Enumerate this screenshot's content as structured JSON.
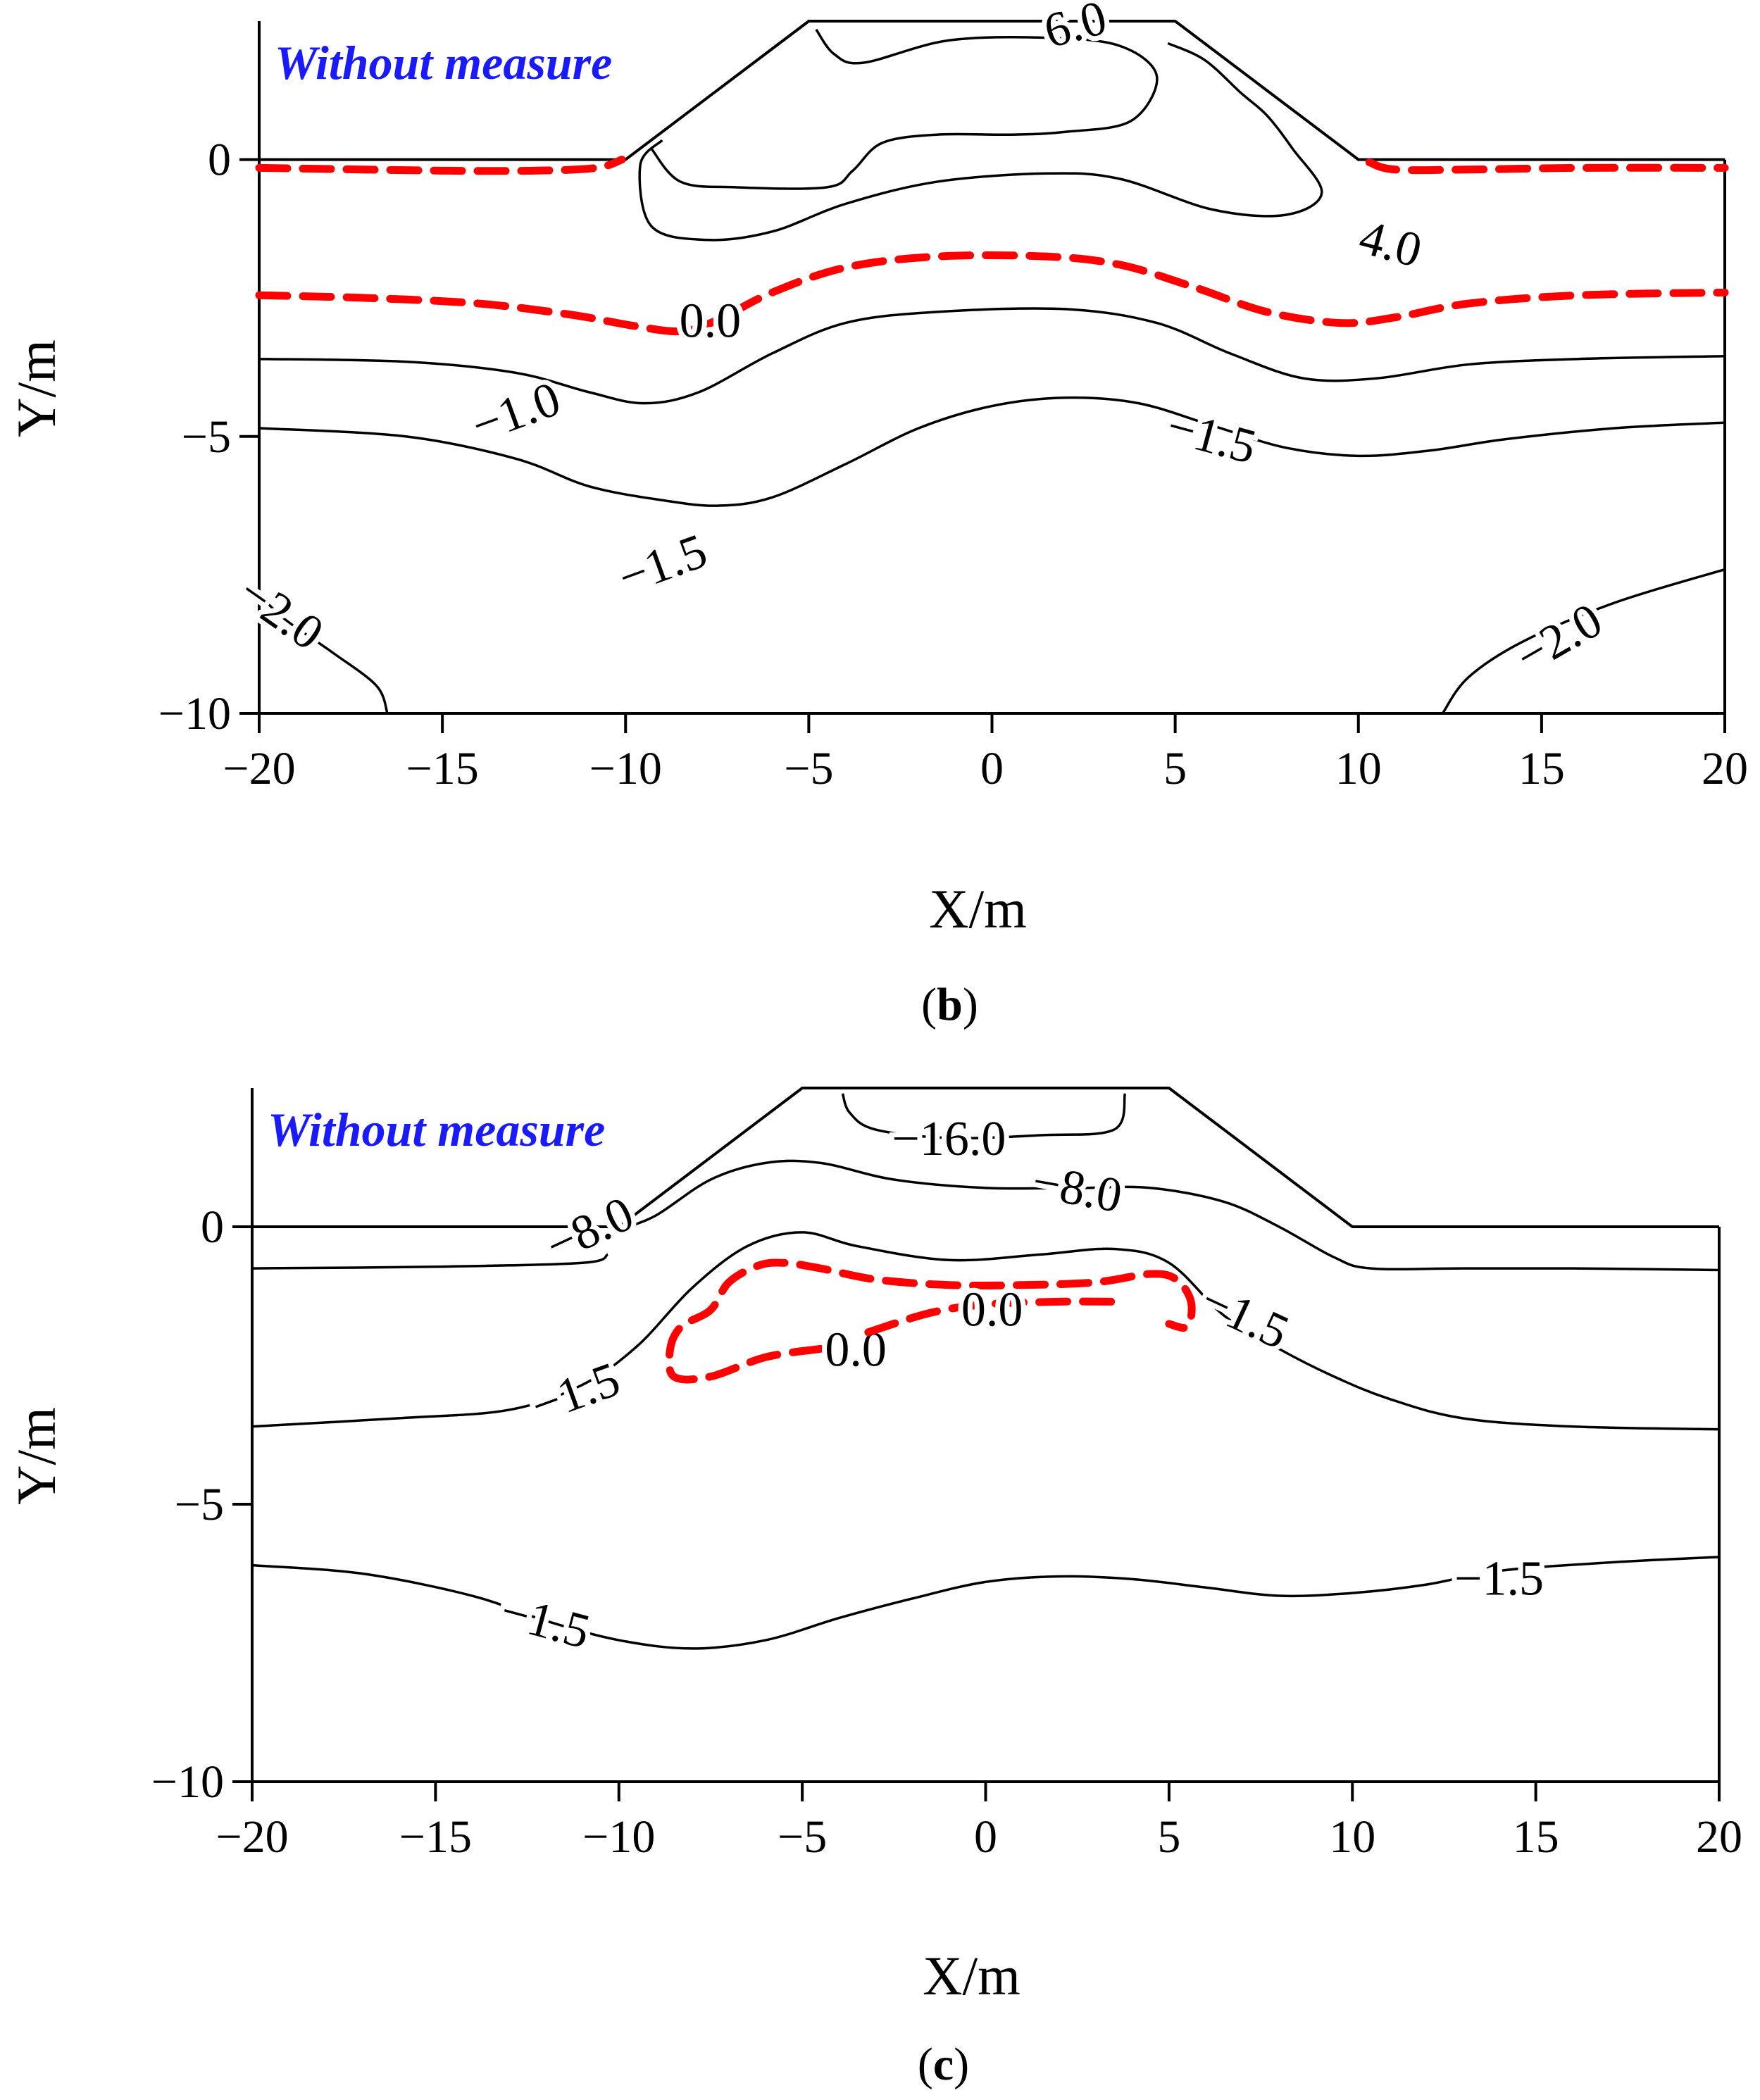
{
  "chart_data": [
    {
      "type": "contour",
      "panel": "(b)",
      "panel_label_prefix": "(",
      "panel_label_letter": "b",
      "panel_label_suffix": ")",
      "title": "Without measure",
      "title_color": "#1a1aff",
      "xlabel": "X/m",
      "ylabel": "Y/m",
      "xlim": [
        -20,
        20
      ],
      "ylim": [
        -10,
        2.5
      ],
      "xticks": [
        -20,
        -15,
        -10,
        -5,
        0,
        5,
        10,
        15,
        20
      ],
      "xtick_labels": [
        "−20",
        "−15",
        "−10",
        "−5",
        "0",
        "5",
        "10",
        "15",
        "20"
      ],
      "yticks": [
        0,
        -5,
        -10
      ],
      "ytick_labels": [
        "0",
        "−5",
        "−10"
      ],
      "embankment": [
        [
          -20,
          0
        ],
        [
          -10,
          0
        ],
        [
          -5,
          2.5
        ],
        [
          5,
          2.5
        ],
        [
          10,
          0
        ],
        [
          20,
          0
        ]
      ],
      "contour_color": "#000000",
      "zero_contour_color": "#ff0000",
      "contours": [
        {
          "level": 6.0,
          "label": "6.0",
          "points": [
            [
              -4.8,
              2.35
            ],
            [
              -4.3,
              1.9
            ],
            [
              -3.5,
              1.75
            ],
            [
              -1.2,
              2.15
            ],
            [
              1.5,
              2.2
            ],
            [
              3.5,
              2.05
            ],
            [
              4.5,
              1.5
            ],
            [
              3.8,
              0.7
            ],
            [
              2.0,
              0.5
            ],
            [
              0.5,
              0.45
            ],
            [
              -1.5,
              0.45
            ],
            [
              -3.0,
              0.3
            ],
            [
              -3.8,
              -0.2
            ],
            [
              -4.5,
              -0.5
            ],
            [
              -7.0,
              -0.5
            ],
            [
              -8.5,
              -0.4
            ],
            [
              -9.3,
              0.2
            ]
          ]
        },
        {
          "level": 4.0,
          "label": "4.0",
          "points": [
            [
              4.8,
              2.1
            ],
            [
              5.8,
              1.8
            ],
            [
              6.8,
              1.2
            ],
            [
              7.5,
              0.8
            ],
            [
              8.2,
              0.2
            ],
            [
              9.0,
              -0.6
            ],
            [
              8.0,
              -1.0
            ],
            [
              6.0,
              -0.9
            ],
            [
              3.5,
              -0.35
            ],
            [
              1.5,
              -0.25
            ],
            [
              -1.5,
              -0.4
            ],
            [
              -4.0,
              -0.8
            ],
            [
              -6.0,
              -1.3
            ],
            [
              -7.8,
              -1.45
            ],
            [
              -9.3,
              -1.2
            ],
            [
              -9.6,
              -0.1
            ],
            [
              -9.0,
              0.35
            ]
          ]
        },
        {
          "level": 0.0,
          "label": "0.0",
          "zero": true,
          "points": [
            [
              -20,
              -0.15
            ],
            [
              -15,
              -0.2
            ],
            [
              -12.5,
              -0.2
            ],
            [
              -10.8,
              -0.15
            ],
            [
              -10.1,
              0.0
            ]
          ]
        },
        {
          "level": 0.0,
          "label": "0.0",
          "zero": true,
          "points": [
            [
              10.3,
              -0.05
            ],
            [
              11,
              -0.18
            ],
            [
              13,
              -0.18
            ],
            [
              16,
              -0.15
            ],
            [
              20,
              -0.15
            ]
          ]
        },
        {
          "level": 0.0,
          "label": "0.0",
          "zero": true,
          "points": [
            [
              -20,
              -2.45
            ],
            [
              -17,
              -2.5
            ],
            [
              -14,
              -2.6
            ],
            [
              -11.5,
              -2.8
            ],
            [
              -9.8,
              -3.0
            ],
            [
              -8.5,
              -3.1
            ],
            [
              -7.5,
              -2.9
            ],
            [
              -6.0,
              -2.4
            ],
            [
              -4.0,
              -1.95
            ],
            [
              -1.5,
              -1.75
            ],
            [
              1.5,
              -1.75
            ],
            [
              3.5,
              -1.9
            ],
            [
              5.5,
              -2.3
            ],
            [
              7.5,
              -2.75
            ],
            [
              9.5,
              -2.95
            ],
            [
              11,
              -2.85
            ],
            [
              13,
              -2.6
            ],
            [
              16,
              -2.45
            ],
            [
              20,
              -2.4
            ]
          ]
        },
        {
          "level": -1.0,
          "label": "−1.0",
          "points": [
            [
              -20,
              -3.6
            ],
            [
              -16,
              -3.65
            ],
            [
              -13,
              -3.85
            ],
            [
              -11,
              -4.2
            ],
            [
              -9.5,
              -4.4
            ],
            [
              -8.0,
              -4.2
            ],
            [
              -6.0,
              -3.5
            ],
            [
              -4.0,
              -2.95
            ],
            [
              -1.5,
              -2.75
            ],
            [
              2.0,
              -2.7
            ],
            [
              4.5,
              -2.95
            ],
            [
              6.5,
              -3.5
            ],
            [
              8.5,
              -3.95
            ],
            [
              10.5,
              -3.95
            ],
            [
              13,
              -3.7
            ],
            [
              16,
              -3.6
            ],
            [
              20,
              -3.55
            ]
          ]
        },
        {
          "level": -1.5,
          "label": "−1.5",
          "points": [
            [
              -20,
              -4.85
            ],
            [
              -16,
              -5.0
            ],
            [
              -13,
              -5.4
            ],
            [
              -11,
              -5.9
            ],
            [
              -9.0,
              -6.15
            ],
            [
              -7.5,
              -6.25
            ],
            [
              -6.0,
              -6.1
            ],
            [
              -4.0,
              -5.5
            ],
            [
              -2.0,
              -4.85
            ],
            [
              0.0,
              -4.45
            ],
            [
              2.0,
              -4.3
            ],
            [
              4.0,
              -4.4
            ],
            [
              6.0,
              -4.8
            ],
            [
              8.0,
              -5.2
            ],
            [
              10,
              -5.35
            ],
            [
              12,
              -5.25
            ],
            [
              14,
              -5.05
            ],
            [
              17,
              -4.85
            ],
            [
              20,
              -4.75
            ]
          ]
        },
        {
          "level": -2.0,
          "label": "−2.0",
          "points": [
            [
              -20,
              -7.85
            ],
            [
              -19.3,
              -8.3
            ],
            [
              -18,
              -8.9
            ],
            [
              -16.8,
              -9.5
            ],
            [
              -16.5,
              -10.0
            ]
          ]
        },
        {
          "level": -2.0,
          "label": "−2.0",
          "points": [
            [
              12.3,
              -10.0
            ],
            [
              13,
              -9.35
            ],
            [
              14.5,
              -8.7
            ],
            [
              17,
              -8.0
            ],
            [
              20,
              -7.4
            ]
          ]
        }
      ]
    },
    {
      "type": "contour",
      "panel": "(c)",
      "panel_label_prefix": "(",
      "panel_label_letter": "c",
      "panel_label_suffix": ")",
      "title": "Without measure",
      "title_color": "#1a1aff",
      "xlabel": "X/m",
      "ylabel": "Y/m",
      "xlim": [
        -20,
        20
      ],
      "ylim": [
        -10,
        2.5
      ],
      "xticks": [
        -20,
        -15,
        -10,
        -5,
        0,
        5,
        10,
        15,
        20
      ],
      "xtick_labels": [
        "−20",
        "−15",
        "−10",
        "−5",
        "0",
        "5",
        "10",
        "15",
        "20"
      ],
      "yticks": [
        0,
        -5,
        -10
      ],
      "ytick_labels": [
        "0",
        "−5",
        "−10"
      ],
      "embankment": [
        [
          -20,
          0
        ],
        [
          -10,
          0
        ],
        [
          -5,
          2.5
        ],
        [
          5,
          2.5
        ],
        [
          10,
          0
        ],
        [
          20,
          0
        ]
      ],
      "contour_color": "#000000",
      "zero_contour_color": "#ff0000",
      "contours": [
        {
          "level": -16.0,
          "label": "−16.0",
          "points": [
            [
              -3.9,
              2.4
            ],
            [
              -3.7,
              2.05
            ],
            [
              -3.0,
              1.75
            ],
            [
              -1.0,
              1.6
            ],
            [
              1.5,
              1.65
            ],
            [
              3.5,
              1.75
            ],
            [
              3.8,
              2.4
            ]
          ]
        },
        {
          "level": -8.0,
          "label": "−8.0",
          "points": [
            [
              -10,
              -0.05
            ],
            [
              -9.0,
              0.2
            ],
            [
              -7.5,
              0.85
            ],
            [
              -6.0,
              1.15
            ],
            [
              -4.5,
              1.15
            ],
            [
              -2.5,
              0.85
            ],
            [
              0.0,
              0.7
            ],
            [
              2.5,
              0.7
            ],
            [
              4.5,
              0.7
            ],
            [
              6.5,
              0.45
            ],
            [
              8.0,
              0.0
            ],
            [
              9.5,
              -0.55
            ],
            [
              10.5,
              -0.75
            ],
            [
              13,
              -0.75
            ],
            [
              16,
              -0.75
            ],
            [
              20,
              -0.78
            ]
          ]
        },
        {
          "level": -8.0,
          "label": "−8.0",
          "points": [
            [
              -20,
              -0.75
            ],
            [
              -15,
              -0.72
            ],
            [
              -11,
              -0.65
            ],
            [
              -10.3,
              -0.5
            ]
          ]
        },
        {
          "level": -1.5,
          "label": "−1.5",
          "points": [
            [
              -20,
              -3.6
            ],
            [
              -16,
              -3.45
            ],
            [
              -13,
              -3.3
            ],
            [
              -11,
              -2.85
            ],
            [
              -9.5,
              -2.15
            ],
            [
              -8.0,
              -1.1
            ],
            [
              -6.5,
              -0.35
            ],
            [
              -5.0,
              -0.1
            ],
            [
              -3.5,
              -0.35
            ],
            [
              -1.0,
              -0.6
            ],
            [
              1.5,
              -0.5
            ],
            [
              3.5,
              -0.4
            ],
            [
              5.0,
              -0.65
            ],
            [
              6.5,
              -1.6
            ],
            [
              8.0,
              -2.2
            ],
            [
              9.5,
              -2.7
            ],
            [
              11,
              -3.1
            ],
            [
              13,
              -3.45
            ],
            [
              16,
              -3.6
            ],
            [
              20,
              -3.65
            ]
          ]
        },
        {
          "level": -1.5,
          "label": "−1.5",
          "points": [
            [
              -20,
              -6.1
            ],
            [
              -17,
              -6.25
            ],
            [
              -14,
              -6.65
            ],
            [
              -12,
              -7.1
            ],
            [
              -10,
              -7.45
            ],
            [
              -8.0,
              -7.6
            ],
            [
              -6.0,
              -7.45
            ],
            [
              -4.0,
              -7.05
            ],
            [
              -2.0,
              -6.7
            ],
            [
              0.0,
              -6.4
            ],
            [
              2.0,
              -6.3
            ],
            [
              4.0,
              -6.35
            ],
            [
              6.0,
              -6.5
            ],
            [
              8.0,
              -6.65
            ],
            [
              10.0,
              -6.6
            ],
            [
              12.0,
              -6.45
            ],
            [
              14.0,
              -6.2
            ],
            [
              17.0,
              -6.05
            ],
            [
              20.0,
              -5.95
            ]
          ]
        },
        {
          "level": 0.0,
          "label": "0.0",
          "zero": true,
          "points": [
            [
              -4.5,
              -2.2
            ],
            [
              -6.0,
              -2.35
            ],
            [
              -7.5,
              -2.7
            ],
            [
              -8.5,
              -2.7
            ],
            [
              -8.6,
              -2.2
            ],
            [
              -8.3,
              -1.8
            ],
            [
              -7.5,
              -1.5
            ],
            [
              -7.0,
              -1.0
            ],
            [
              -6.2,
              -0.7
            ],
            [
              -5.5,
              -0.65
            ],
            [
              -4.5,
              -0.75
            ],
            [
              -3.0,
              -0.95
            ],
            [
              -1.0,
              -1.05
            ],
            [
              1.0,
              -1.05
            ],
            [
              3.0,
              -1.0
            ],
            [
              4.5,
              -0.85
            ],
            [
              5.2,
              -0.95
            ],
            [
              5.6,
              -1.35
            ],
            [
              5.5,
              -1.8
            ],
            [
              5.0,
              -1.75
            ]
          ]
        },
        {
          "level": 0.0,
          "label": "0.0",
          "zero": true,
          "points": [
            [
              -3.2,
              -1.9
            ],
            [
              -1.5,
              -1.55
            ],
            [
              0.0,
              -1.4
            ],
            [
              2.0,
              -1.35
            ],
            [
              3.5,
              -1.35
            ]
          ]
        }
      ]
    }
  ]
}
